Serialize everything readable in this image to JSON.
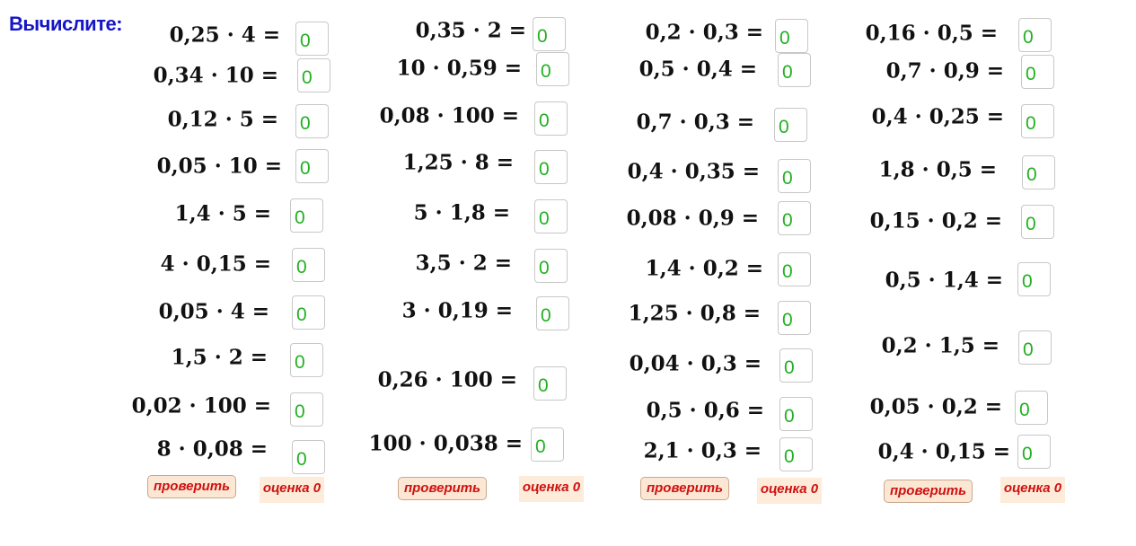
{
  "title": "Вычислите:",
  "colors": {
    "title": "#1515c8",
    "answer": "#22b022",
    "button_text": "#d01010",
    "button_bg": "#fbe7d3"
  },
  "columns": [
    {
      "problems": [
        {
          "expr": "0,25 · 4 =",
          "answer": "0"
        },
        {
          "expr": "0,34 · 10 =",
          "answer": "0"
        },
        {
          "expr": "0,12 · 5 =",
          "answer": "0"
        },
        {
          "expr": "0,05 · 10 =",
          "answer": "0"
        },
        {
          "expr": "1,4 · 5 =",
          "answer": "0"
        },
        {
          "expr": "4 · 0,15 =",
          "answer": "0"
        },
        {
          "expr": "0,05 · 4 =",
          "answer": "0"
        },
        {
          "expr": "1,5 · 2 =",
          "answer": "0"
        },
        {
          "expr": "0,02 · 100 =",
          "answer": "0"
        },
        {
          "expr": "8 · 0,08 =",
          "answer": "0"
        }
      ],
      "check_label": "проверить",
      "score_label": "оценка 0"
    },
    {
      "problems": [
        {
          "expr": "0,35 · 2 =",
          "answer": "0"
        },
        {
          "expr": "10 · 0,59 =",
          "answer": "0"
        },
        {
          "expr": "0,08 · 100 =",
          "answer": "0"
        },
        {
          "expr": "1,25 · 8 =",
          "answer": "0"
        },
        {
          "expr": "5 · 1,8 =",
          "answer": "0"
        },
        {
          "expr": "3,5 · 2 =",
          "answer": "0"
        },
        {
          "expr": "3 · 0,19 =",
          "answer": "0"
        },
        {
          "expr": "0,26 · 100 =",
          "answer": "0"
        },
        {
          "expr": "100 · 0,038 =",
          "answer": "0"
        }
      ],
      "check_label": "проверить",
      "score_label": "оценка 0"
    },
    {
      "problems": [
        {
          "expr": "0,2 · 0,3 =",
          "answer": "0"
        },
        {
          "expr": "0,5 · 0,4 =",
          "answer": "0"
        },
        {
          "expr": "0,7 · 0,3 =",
          "answer": "0"
        },
        {
          "expr": "0,4 · 0,35 =",
          "answer": "0"
        },
        {
          "expr": "0,08 · 0,9 =",
          "answer": "0"
        },
        {
          "expr": "1,4 · 0,2 =",
          "answer": "0"
        },
        {
          "expr": "1,25 · 0,8 =",
          "answer": "0"
        },
        {
          "expr": "0,04 · 0,3 =",
          "answer": "0"
        },
        {
          "expr": "0,5 · 0,6 =",
          "answer": "0"
        },
        {
          "expr": "2,1 · 0,3 =",
          "answer": "0"
        }
      ],
      "check_label": "проверить",
      "score_label": "оценка 0"
    },
    {
      "problems": [
        {
          "expr": "0,16 · 0,5 =",
          "answer": "0"
        },
        {
          "expr": "0,7 · 0,9 =",
          "answer": "0"
        },
        {
          "expr": "0,4 · 0,25 =",
          "answer": "0"
        },
        {
          "expr": "1,8 · 0,5 =",
          "answer": "0"
        },
        {
          "expr": "0,15 · 0,2 =",
          "answer": "0"
        },
        {
          "expr": "0,5 · 1,4 =",
          "answer": "0"
        },
        {
          "expr": "0,2 · 1,5 =",
          "answer": "0"
        },
        {
          "expr": "0,05 · 0,2 =",
          "answer": "0"
        },
        {
          "expr": "0,4 · 0,15 =",
          "answer": "0"
        }
      ],
      "check_label": "проверить",
      "score_label": "оценка 0"
    }
  ]
}
